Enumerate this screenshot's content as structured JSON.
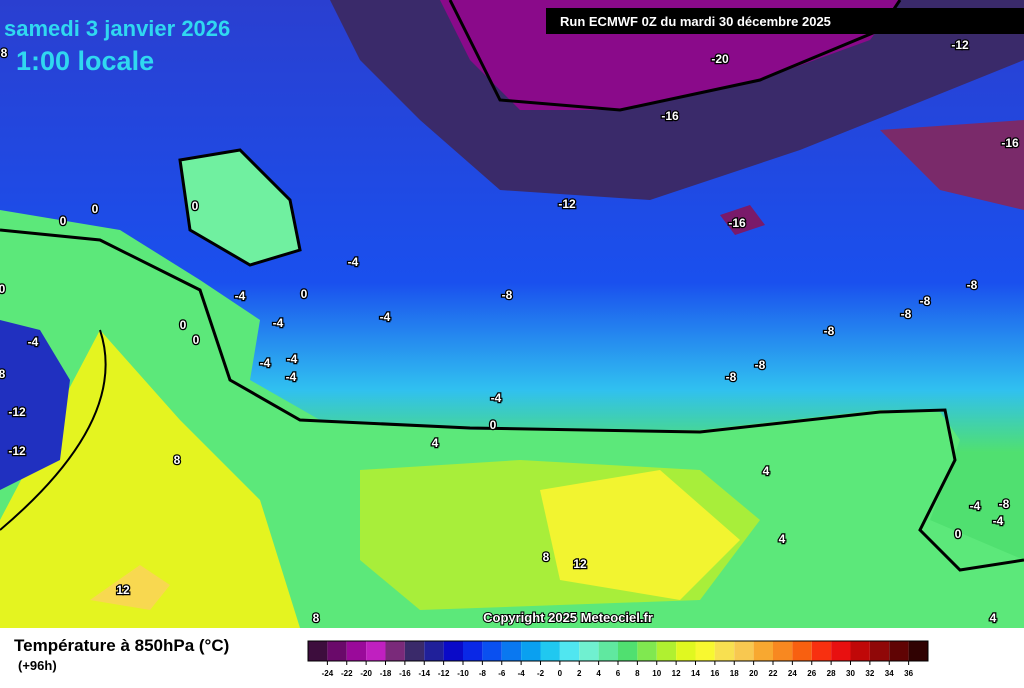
{
  "header": {
    "date": "samedi 3 janvier 2026",
    "time": "1:00 locale",
    "run": "Run ECMWF 0Z du mardi 30 décembre 2025"
  },
  "map": {
    "copyright": "Copyright 2025 Meteociel.fr",
    "contour_labels": [
      "-20",
      "-16",
      "-12",
      "-16",
      "-12",
      "-16",
      "-8",
      "-4",
      "-4",
      "-4",
      "-4",
      "-4",
      "-4",
      "-4",
      "0",
      "0",
      "0",
      "0",
      "0",
      "0",
      "0",
      "-4",
      "8",
      "-12",
      "-12",
      "-8",
      "-8",
      "-8",
      "-8",
      "-8",
      "-8",
      "-4",
      "0",
      "4",
      "8",
      "4",
      "4",
      "8",
      "12",
      "12",
      "8",
      "4",
      "-4",
      "-8",
      "-4",
      "0",
      "8"
    ]
  },
  "legend": {
    "title": "Température à 850hPa (°C)",
    "subtitle": "(+96h)",
    "ticks": [
      -24,
      -22,
      -20,
      -18,
      -16,
      -14,
      -12,
      -10,
      -8,
      -6,
      -4,
      -2,
      0,
      2,
      4,
      6,
      8,
      10,
      12,
      14,
      16,
      18,
      20,
      22,
      24,
      26,
      28,
      30,
      32,
      34,
      36
    ],
    "colors": [
      "#3d0d3d",
      "#6a0a6a",
      "#9a0a9a",
      "#c020c0",
      "#7a2a7a",
      "#3a2a6a",
      "#20209a",
      "#0a0ac8",
      "#0a28e6",
      "#0a50f0",
      "#0a78f0",
      "#0aa0f0",
      "#20c8f0",
      "#50e6f0",
      "#70f0d0",
      "#60e8a0",
      "#50e070",
      "#80e850",
      "#b0f030",
      "#e0f820",
      "#f8f830",
      "#f8e050",
      "#f8c850",
      "#f8a830",
      "#f88820",
      "#f86010",
      "#f83010",
      "#e81010",
      "#c00808",
      "#900808",
      "#600404",
      "#300202"
    ]
  }
}
